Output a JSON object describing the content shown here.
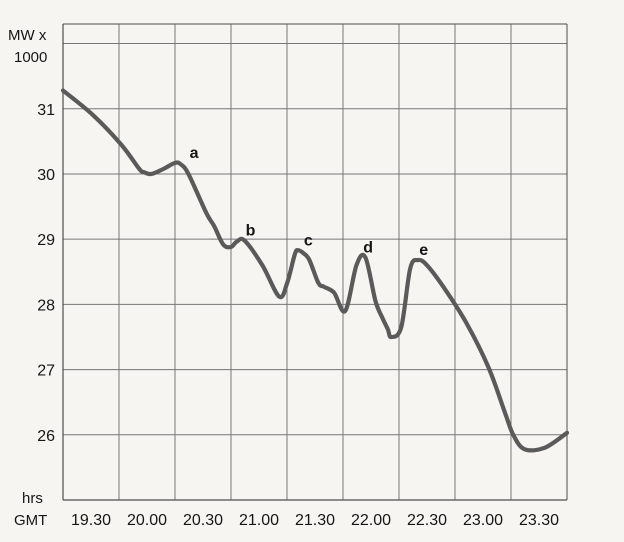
{
  "chart_data": {
    "type": "line",
    "title": "",
    "ylabel": "MW x 1000",
    "xlabel": "hrs GMT",
    "ylabel_lines": [
      "MW x",
      "1000"
    ],
    "xlabel_lines": [
      "hrs",
      "GMT"
    ],
    "x_ticks": [
      "19.30",
      "20.00",
      "20.30",
      "21.00",
      "21.30",
      "22.00",
      "22.30",
      "23.00",
      "23.30"
    ],
    "y_ticks": [
      "31",
      "30",
      "29",
      "28",
      "27",
      "26"
    ],
    "ylim": [
      25,
      32.3
    ],
    "xlim_hours": [
      19,
      23.5
    ],
    "grid": true,
    "line_color": "#5a5a5a",
    "grid_color": "#767676",
    "axis_color": "#4d4d4d",
    "series": [
      {
        "x": [
          19.0,
          19.27,
          19.52,
          19.68,
          19.72,
          19.79,
          19.9,
          20.0,
          20.05,
          20.12,
          20.28,
          20.35,
          20.43,
          20.5,
          20.55,
          20.62,
          20.78,
          20.93,
          21.0,
          21.07,
          21.1,
          21.15,
          21.2,
          21.28,
          21.33,
          21.42,
          21.52,
          21.62,
          21.7,
          21.79,
          21.85,
          21.9,
          21.93,
          22.02,
          22.1,
          22.17,
          22.25,
          22.4,
          22.6,
          22.8,
          22.95,
          23.02,
          23.12,
          23.3,
          23.5
        ],
        "y": [
          31.28,
          30.9,
          30.45,
          30.08,
          30.03,
          30.0,
          30.08,
          30.17,
          30.15,
          30.0,
          29.4,
          29.2,
          28.92,
          28.88,
          28.96,
          28.98,
          28.6,
          28.12,
          28.32,
          28.77,
          28.83,
          28.78,
          28.68,
          28.33,
          28.27,
          28.18,
          27.9,
          28.6,
          28.72,
          28.05,
          27.8,
          27.62,
          27.5,
          27.65,
          28.55,
          28.68,
          28.6,
          28.26,
          27.72,
          27.03,
          26.32,
          26.0,
          25.78,
          25.8,
          26.03
        ]
      }
    ],
    "annotations": [
      {
        "text": "a",
        "x": 20.05,
        "y": 30.17
      },
      {
        "text": "b",
        "x": 20.55,
        "y": 28.98
      },
      {
        "text": "c",
        "x": 21.07,
        "y": 28.83
      },
      {
        "text": "d",
        "x": 21.6,
        "y": 28.72
      },
      {
        "text": "e",
        "x": 22.1,
        "y": 28.68
      }
    ]
  }
}
